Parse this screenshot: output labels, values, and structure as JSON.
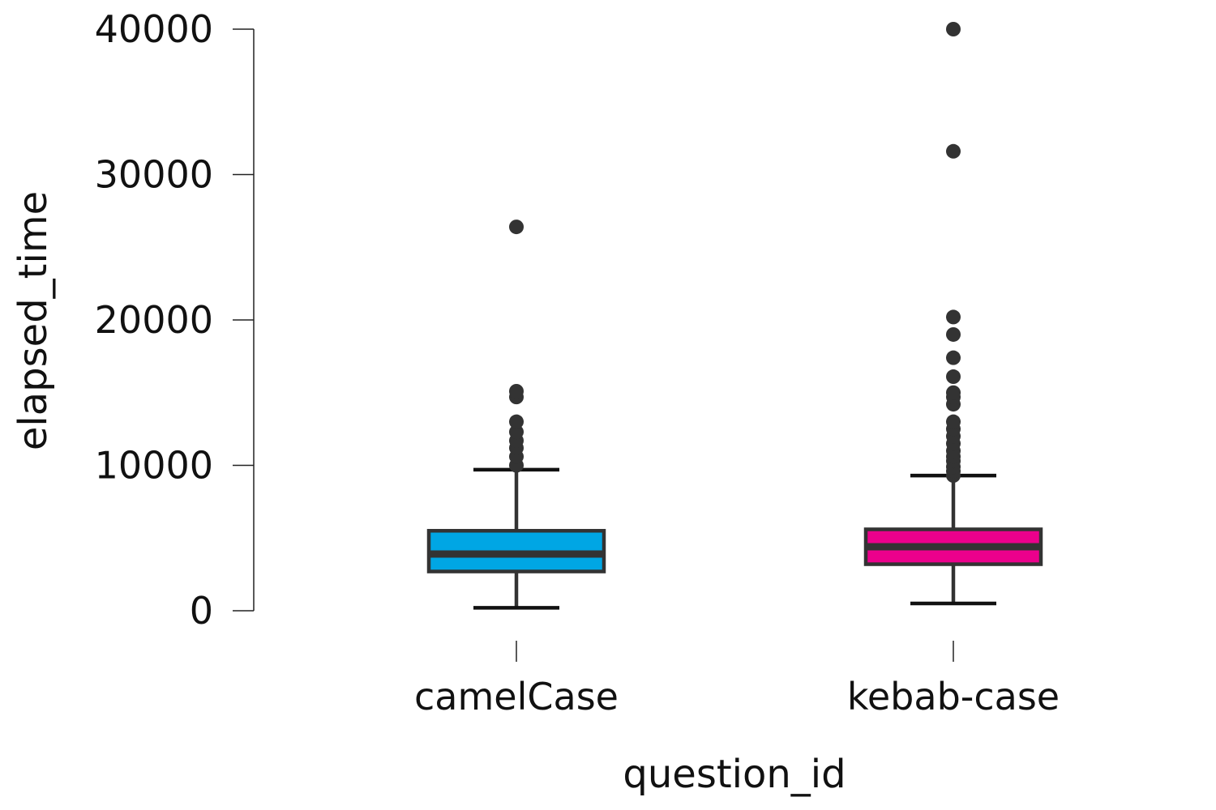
{
  "chart_data": {
    "type": "box",
    "title": "",
    "xlabel": "question_id",
    "ylabel": "elapsed_time",
    "ylim": [
      0,
      40000
    ],
    "yticks": [
      0,
      10000,
      20000,
      30000,
      40000
    ],
    "grid": false,
    "legend": "none",
    "categories": [
      "camelCase",
      "kebab-case"
    ],
    "boxes": [
      {
        "category": "camelCase",
        "color": "#00a6e4",
        "whisker_low": 200,
        "q1": 2700,
        "median": 3900,
        "q3": 5500,
        "whisker_high": 9700,
        "outliers": [
          10000,
          10600,
          11200,
          11700,
          12300,
          13000,
          14700,
          15100,
          26400
        ]
      },
      {
        "category": "kebab-case",
        "color": "#ec008c",
        "whisker_low": 500,
        "q1": 3200,
        "median": 4400,
        "q3": 5600,
        "whisker_high": 9300,
        "outliers": [
          9300,
          9600,
          9900,
          10300,
          10600,
          11000,
          11500,
          12000,
          12500,
          13000,
          14200,
          14700,
          15000,
          16100,
          17400,
          19000,
          20200,
          31600,
          40000
        ]
      }
    ]
  }
}
